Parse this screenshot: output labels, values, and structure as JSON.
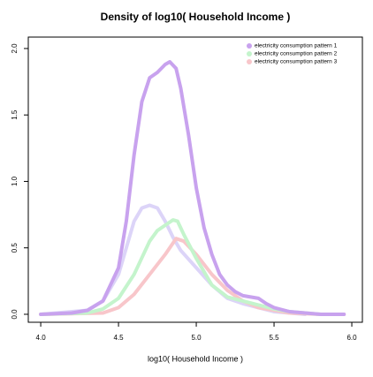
{
  "chart_data": {
    "type": "line",
    "title": "Density of  log10( Household Income )",
    "x_label": "log10( Household Income )",
    "xlim": [
      3.92,
      6.068
    ],
    "ylim": [
      -0.06,
      2.086
    ],
    "xticks": [
      {
        "value": 4,
        "label": "4.0"
      },
      {
        "value": 4.5,
        "label": "4.5"
      },
      {
        "value": 5,
        "label": "5.0"
      },
      {
        "value": 5.5,
        "label": "5.5"
      },
      {
        "value": 6,
        "label": "6.0"
      }
    ],
    "yticks": [
      {
        "value": 0,
        "label": "0.0"
      },
      {
        "value": 0.5,
        "label": "0.5"
      },
      {
        "value": 1,
        "label": "1.0"
      },
      {
        "value": 1.5,
        "label": "1.5"
      },
      {
        "value": 2,
        "label": "2.0"
      }
    ],
    "legend": "top-right",
    "series": [
      {
        "name": "electricity consumption pattern 1",
        "color": "#c8a2ee",
        "x": [
          4.0,
          4.2,
          4.3,
          4.4,
          4.5,
          4.55,
          4.6,
          4.65,
          4.7,
          4.75,
          4.8,
          4.83,
          4.87,
          4.9,
          4.95,
          5.0,
          5.05,
          5.1,
          5.15,
          5.2,
          5.25,
          5.3,
          5.35,
          5.4,
          5.45,
          5.5,
          5.6,
          5.7,
          5.8,
          5.95
        ],
        "values": [
          0,
          0.01,
          0.03,
          0.1,
          0.35,
          0.7,
          1.2,
          1.6,
          1.78,
          1.82,
          1.88,
          1.9,
          1.85,
          1.7,
          1.35,
          0.95,
          0.65,
          0.45,
          0.3,
          0.22,
          0.17,
          0.14,
          0.13,
          0.12,
          0.08,
          0.05,
          0.02,
          0.01,
          0,
          0
        ]
      },
      {
        "name": "electricity consumption pattern 2",
        "color": "#c4f4cc",
        "x": [
          4.0,
          4.3,
          4.4,
          4.5,
          4.6,
          4.7,
          4.75,
          4.8,
          4.85,
          4.88,
          4.92,
          5.0,
          5.1,
          5.2,
          5.3,
          5.4,
          5.5,
          5.6,
          5.8
        ],
        "values": [
          0,
          0.01,
          0.04,
          0.12,
          0.3,
          0.55,
          0.63,
          0.67,
          0.71,
          0.7,
          0.6,
          0.42,
          0.22,
          0.13,
          0.1,
          0.07,
          0.04,
          0.02,
          0
        ]
      },
      {
        "name": "electricity consumption pattern 3",
        "color": "#f8c6ca",
        "x": [
          4.0,
          4.4,
          4.5,
          4.6,
          4.7,
          4.8,
          4.87,
          4.92,
          5.0,
          5.1,
          5.2,
          5.3,
          5.4,
          5.5,
          5.6,
          5.8,
          5.95
        ],
        "values": [
          0,
          0.01,
          0.05,
          0.15,
          0.3,
          0.45,
          0.57,
          0.55,
          0.45,
          0.3,
          0.18,
          0.1,
          0.05,
          0.03,
          0.01,
          0,
          0
        ]
      },
      {
        "color": "#dcd4f8",
        "x": [
          4.0,
          4.3,
          4.4,
          4.5,
          4.55,
          4.6,
          4.65,
          4.7,
          4.75,
          4.8,
          4.85,
          4.9,
          5.0,
          5.1,
          5.2,
          5.3,
          5.4,
          5.5,
          5.7
        ],
        "values": [
          0,
          0.03,
          0.1,
          0.3,
          0.5,
          0.7,
          0.8,
          0.82,
          0.8,
          0.7,
          0.58,
          0.48,
          0.35,
          0.22,
          0.12,
          0.08,
          0.05,
          0.02,
          0
        ]
      }
    ]
  }
}
